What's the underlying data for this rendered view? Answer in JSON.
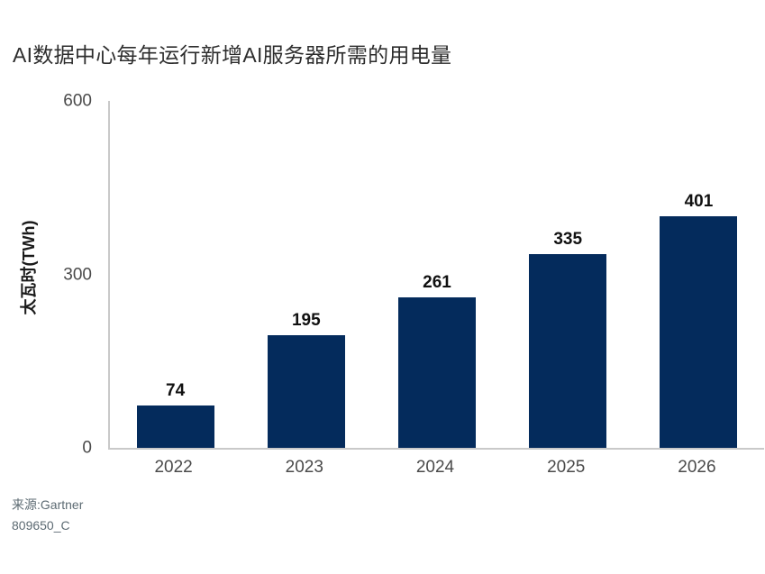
{
  "page": {
    "title": "AI数据中心每年运行新增AI服务器所需的用电量",
    "source_line1": "来源:Gartner",
    "source_line2": "809650_C"
  },
  "chart_data": {
    "type": "bar",
    "title": "AI数据中心每年运行新增AI服务器所需的用电量",
    "categories": [
      "2022",
      "2023",
      "2024",
      "2025",
      "2026"
    ],
    "values": [
      74,
      195,
      261,
      335,
      401
    ],
    "value_labels": [
      "74",
      "195",
      "261",
      "335",
      "401"
    ],
    "xlabel": "",
    "ylabel": "太瓦时(TWh)",
    "ylim": [
      0,
      600
    ],
    "yticks": [
      0,
      300,
      600
    ],
    "grid": false,
    "legend": false
  },
  "colors": {
    "bar": "#042b5c",
    "axis_line": "#c9c9c9",
    "title_text": "#2d2d2d",
    "tick_text": "#4a4a4a",
    "value_text": "#111111",
    "source_text": "#5d6b73"
  }
}
